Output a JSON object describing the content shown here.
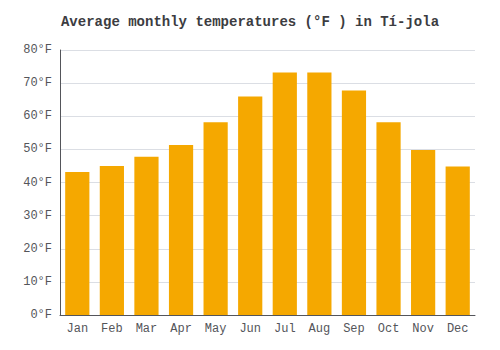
{
  "chart_data": {
    "type": "bar",
    "title": "Average monthly temperatures (°F ) in Tí‑jola",
    "categories": [
      "Jan",
      "Feb",
      "Mar",
      "Apr",
      "May",
      "Jun",
      "Jul",
      "Aug",
      "Sep",
      "Oct",
      "Nov",
      "Dec"
    ],
    "values": [
      43.2,
      45.0,
      47.8,
      51.3,
      58.2,
      66.0,
      73.2,
      73.2,
      67.8,
      58.2,
      49.8,
      44.8
    ],
    "color": "#F5A800",
    "ylim": [
      0,
      80
    ],
    "yticks": [
      {
        "value": 0,
        "label": "0°F"
      },
      {
        "value": 10,
        "label": "10°F"
      },
      {
        "value": 20,
        "label": "20°F"
      },
      {
        "value": 30,
        "label": "30°F"
      },
      {
        "value": 40,
        "label": "40°F"
      },
      {
        "value": 50,
        "label": "50°F"
      },
      {
        "value": 60,
        "label": "60°F"
      },
      {
        "value": 70,
        "label": "70°F"
      },
      {
        "value": 80,
        "label": "80°F"
      }
    ],
    "grid": true
  }
}
